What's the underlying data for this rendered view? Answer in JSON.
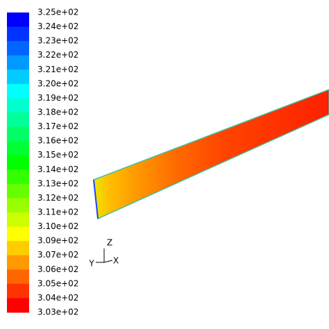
{
  "colorbar": {
    "labels": [
      "3.25e+02",
      "3.24e+02",
      "3.23e+02",
      "3.22e+02",
      "3.21e+02",
      "3.20e+02",
      "3.19e+02",
      "3.18e+02",
      "3.17e+02",
      "3.16e+02",
      "3.15e+02",
      "3.14e+02",
      "3.13e+02",
      "3.12e+02",
      "3.11e+02",
      "3.10e+02",
      "3.09e+02",
      "3.07e+02",
      "3.06e+02",
      "3.05e+02",
      "3.04e+02",
      "3.03e+02"
    ]
  },
  "triad": {
    "z": "Z",
    "y": "Y",
    "x": "X"
  }
}
